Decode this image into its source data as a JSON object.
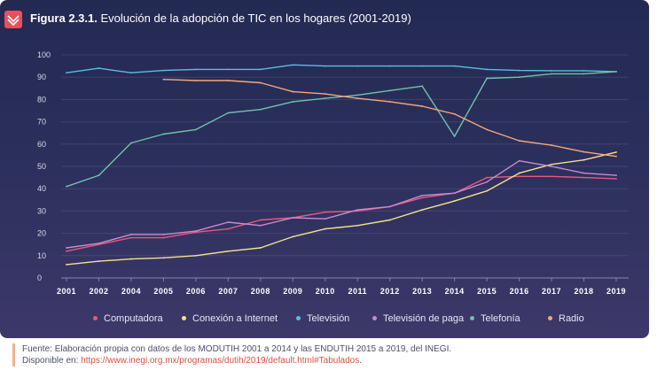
{
  "figure": {
    "label": "Figura 2.3.1.",
    "title": "Evolución de la adopción de TIC en los hogares (2001-2019)"
  },
  "source": {
    "text": "Fuente: Elaboración propia con datos de los MODUTIH 2001 a 2014 y las ENDUTIH 2015 a 2019, del INEGI.",
    "prefix": "Disponible en: ",
    "url": "https://www.inegi.org.mx/programas/dutih/2019/default.html#Tabulados",
    "suffix": "."
  },
  "chart_data": {
    "type": "line",
    "categories": [
      "2001",
      "2002",
      "2004",
      "2005",
      "2006",
      "2007",
      "2008",
      "2009",
      "2010",
      "2011",
      "2012",
      "2013",
      "2014",
      "2015",
      "2016",
      "2017",
      "2018",
      "2019"
    ],
    "ylim": [
      0,
      100
    ],
    "yticks": [
      0,
      10,
      20,
      30,
      40,
      50,
      60,
      70,
      80,
      90,
      100
    ],
    "grid": "horizontal",
    "legend_position": "bottom",
    "series": [
      {
        "name": "Computadora",
        "color": "#e75a7c",
        "values": [
          12,
          15,
          18,
          18,
          20.5,
          22,
          26,
          27,
          29.5,
          30,
          32,
          36,
          38,
          45,
          45.5,
          45.5,
          45,
          44.5
        ]
      },
      {
        "name": "Conexión a Internet",
        "color": "#f3e28f",
        "values": [
          6,
          7.5,
          8.5,
          9,
          10,
          12,
          13.5,
          18.5,
          22,
          23.5,
          26,
          30.5,
          34.5,
          39,
          47,
          50.9,
          52.9,
          56.4
        ]
      },
      {
        "name": "Televisión",
        "color": "#55c0e0",
        "values": [
          92,
          94,
          92,
          93,
          93.5,
          93.5,
          93.5,
          95.5,
          95,
          95,
          95,
          95,
          95,
          93.5,
          93,
          92.9,
          92.9,
          92.5
        ]
      },
      {
        "name": "Televisión de paga",
        "color": "#c58bd2",
        "values": [
          13.5,
          15.5,
          19.5,
          19.5,
          21,
          25,
          23.5,
          27,
          26.5,
          30.5,
          32,
          37,
          38,
          43,
          52.5,
          50,
          47,
          46
        ]
      },
      {
        "name": "Telefonía",
        "color": "#6fc3a8",
        "values": [
          41,
          46,
          60.5,
          64.5,
          66.5,
          74,
          75.5,
          79,
          80.5,
          82,
          84,
          86,
          63.5,
          89.5,
          90,
          91.5,
          91.5,
          92.5
        ]
      },
      {
        "name": "Radio",
        "color": "#f5a77a",
        "values": [
          null,
          null,
          null,
          89,
          88.5,
          88.5,
          87.5,
          83.5,
          82.5,
          80.5,
          79,
          77,
          73.5,
          66.5,
          61.5,
          59.5,
          56.5,
          54.5
        ]
      }
    ]
  }
}
